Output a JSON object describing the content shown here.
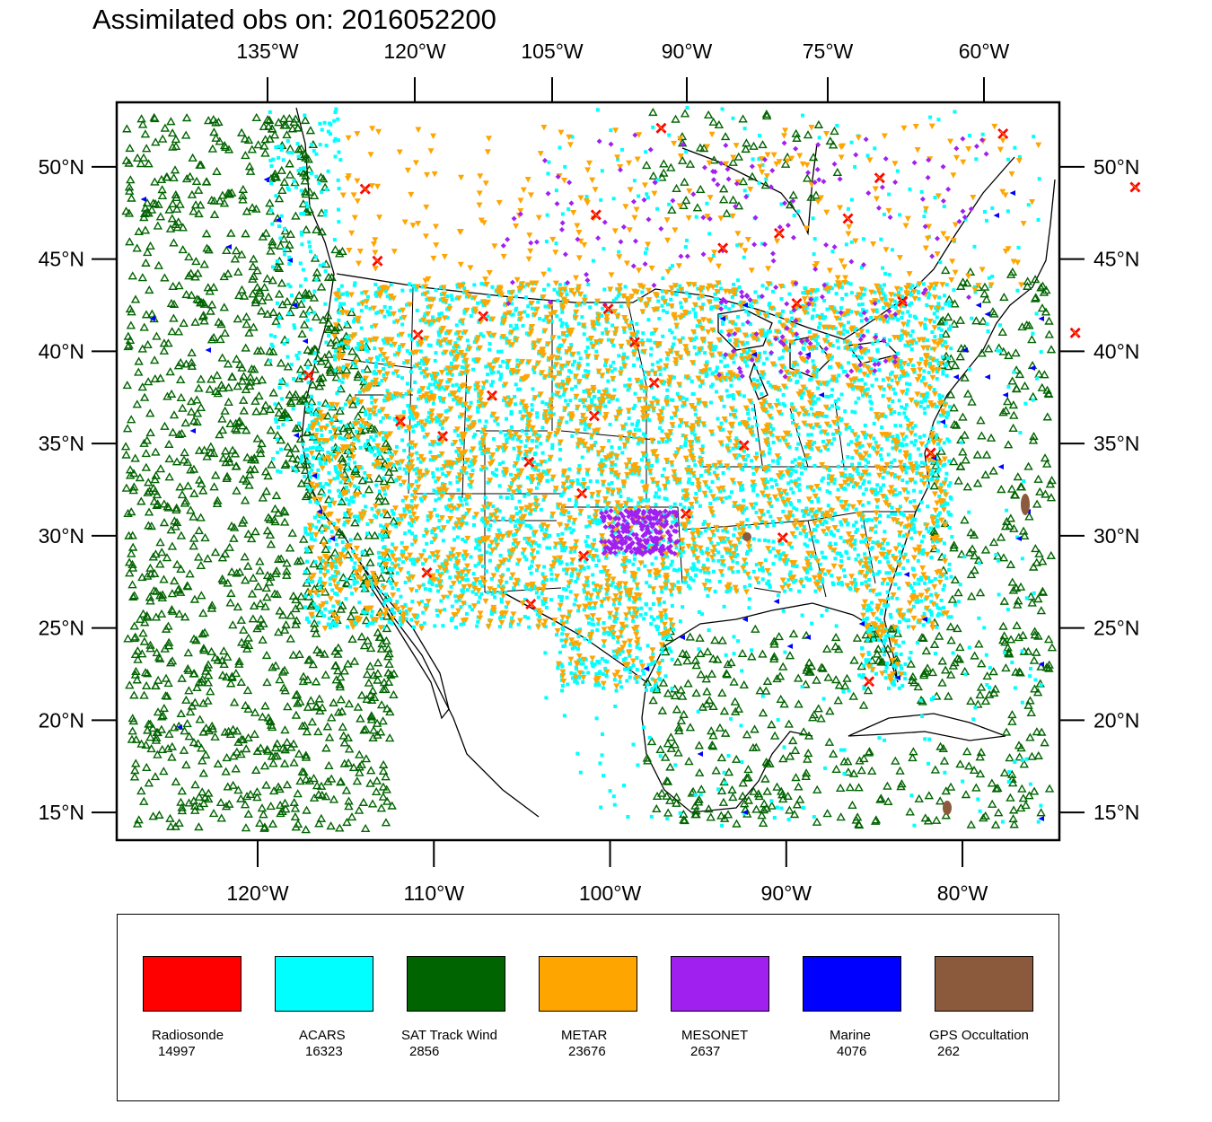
{
  "title": "Assimilated obs on: 2016052200",
  "map": {
    "top_lon_ticks": [
      "135°W",
      "120°W",
      "105°W",
      "90°W",
      "75°W",
      "60°W"
    ],
    "bottom_lon_ticks": [
      "120°W",
      "110°W",
      "100°W",
      "90°W",
      "80°W"
    ],
    "lat_ticks": [
      "50°N",
      "45°N",
      "40°N",
      "35°N",
      "30°N",
      "25°N",
      "20°N",
      "15°N"
    ],
    "lat_values": [
      50,
      45,
      40,
      35,
      30,
      25,
      20,
      15
    ],
    "bottom_lon_values": [
      -120,
      -110,
      -100,
      -90,
      -80
    ],
    "extent": {
      "lon_min": -128,
      "lon_max": -74.5,
      "lat_min": 13.5,
      "lat_max": 53.5
    }
  },
  "legend": {
    "items": [
      {
        "name": "Radiosonde",
        "count": "14997",
        "color": "#ff0000"
      },
      {
        "name": "ACARS",
        "count": "16323",
        "color": "#00ffff"
      },
      {
        "name": "SAT Track Wind",
        "count": "2856",
        "color": "#006400"
      },
      {
        "name": "METAR",
        "count": "23676",
        "color": "#ffa500"
      },
      {
        "name": "MESONET",
        "count": "2637",
        "color": "#a020f0"
      },
      {
        "name": "Marine",
        "count": "4076",
        "color": "#0000ff"
      },
      {
        "name": "GPS Occultation",
        "count": "262",
        "color": "#8b5a3c"
      }
    ]
  },
  "radiosonde_sites": [
    [
      -113.9,
      48.8
    ],
    [
      -113.2,
      44.9
    ],
    [
      -97.1,
      52.1
    ],
    [
      -100.8,
      47.4
    ],
    [
      -93.6,
      45.6
    ],
    [
      -84.7,
      49.4
    ],
    [
      -77.7,
      51.8
    ],
    [
      -90.4,
      46.4
    ],
    [
      -89.4,
      42.6
    ],
    [
      -83.4,
      42.7
    ],
    [
      -100.1,
      42.3
    ],
    [
      -107.2,
      41.9
    ],
    [
      -110.9,
      40.9
    ],
    [
      -117.1,
      38.7
    ],
    [
      -111.9,
      36.2
    ],
    [
      -106.7,
      37.6
    ],
    [
      -98.6,
      40.5
    ],
    [
      -97.5,
      38.3
    ],
    [
      -100.9,
      36.5
    ],
    [
      -104.6,
      34.0
    ],
    [
      -101.6,
      32.3
    ],
    [
      -95.7,
      31.2
    ],
    [
      -92.4,
      34.9
    ],
    [
      -90.2,
      29.9
    ],
    [
      -101.5,
      28.9
    ],
    [
      -110.4,
      28.0
    ],
    [
      -104.5,
      26.3
    ],
    [
      -85.3,
      22.1
    ],
    [
      -81.8,
      34.5
    ],
    [
      -73.6,
      41.0
    ],
    [
      -70.2,
      48.9
    ],
    [
      -86.5,
      47.2
    ],
    [
      -109.5,
      35.4
    ]
  ]
}
